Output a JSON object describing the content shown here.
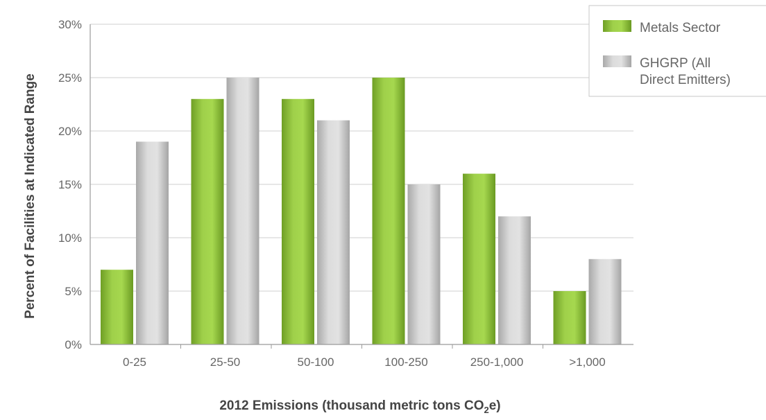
{
  "chart_data": {
    "type": "bar",
    "title": "",
    "xlabel": "2012 Emissions (thousand metric tons CO",
    "xlabel_subscript": "2",
    "xlabel_suffix": "e)",
    "ylabel": "Percent of Facilities at Indicated Range",
    "categories": [
      "0-25",
      "25-50",
      "50-100",
      "100-250",
      "250-1,000",
      ">1,000"
    ],
    "ylim": [
      0,
      30
    ],
    "yticks": [
      {
        "value": 0,
        "label": "0%"
      },
      {
        "value": 5,
        "label": "5%"
      },
      {
        "value": 10,
        "label": "10%"
      },
      {
        "value": 15,
        "label": "15%"
      },
      {
        "value": 20,
        "label": "20%"
      },
      {
        "value": 25,
        "label": "25%"
      },
      {
        "value": 30,
        "label": "30%"
      }
    ],
    "grid": true,
    "legend_position": "top-right",
    "series": [
      {
        "name": "Metals Sector",
        "color": "#8cc63f",
        "values": [
          7,
          23,
          23,
          25,
          16,
          5
        ]
      },
      {
        "name": "GHGRP (All Direct Emitters)",
        "legend_lines": [
          "GHGRP (All",
          "Direct Emitters)"
        ],
        "color": "#c8c8c8",
        "values": [
          19,
          25,
          21,
          15,
          12,
          8
        ]
      }
    ]
  }
}
